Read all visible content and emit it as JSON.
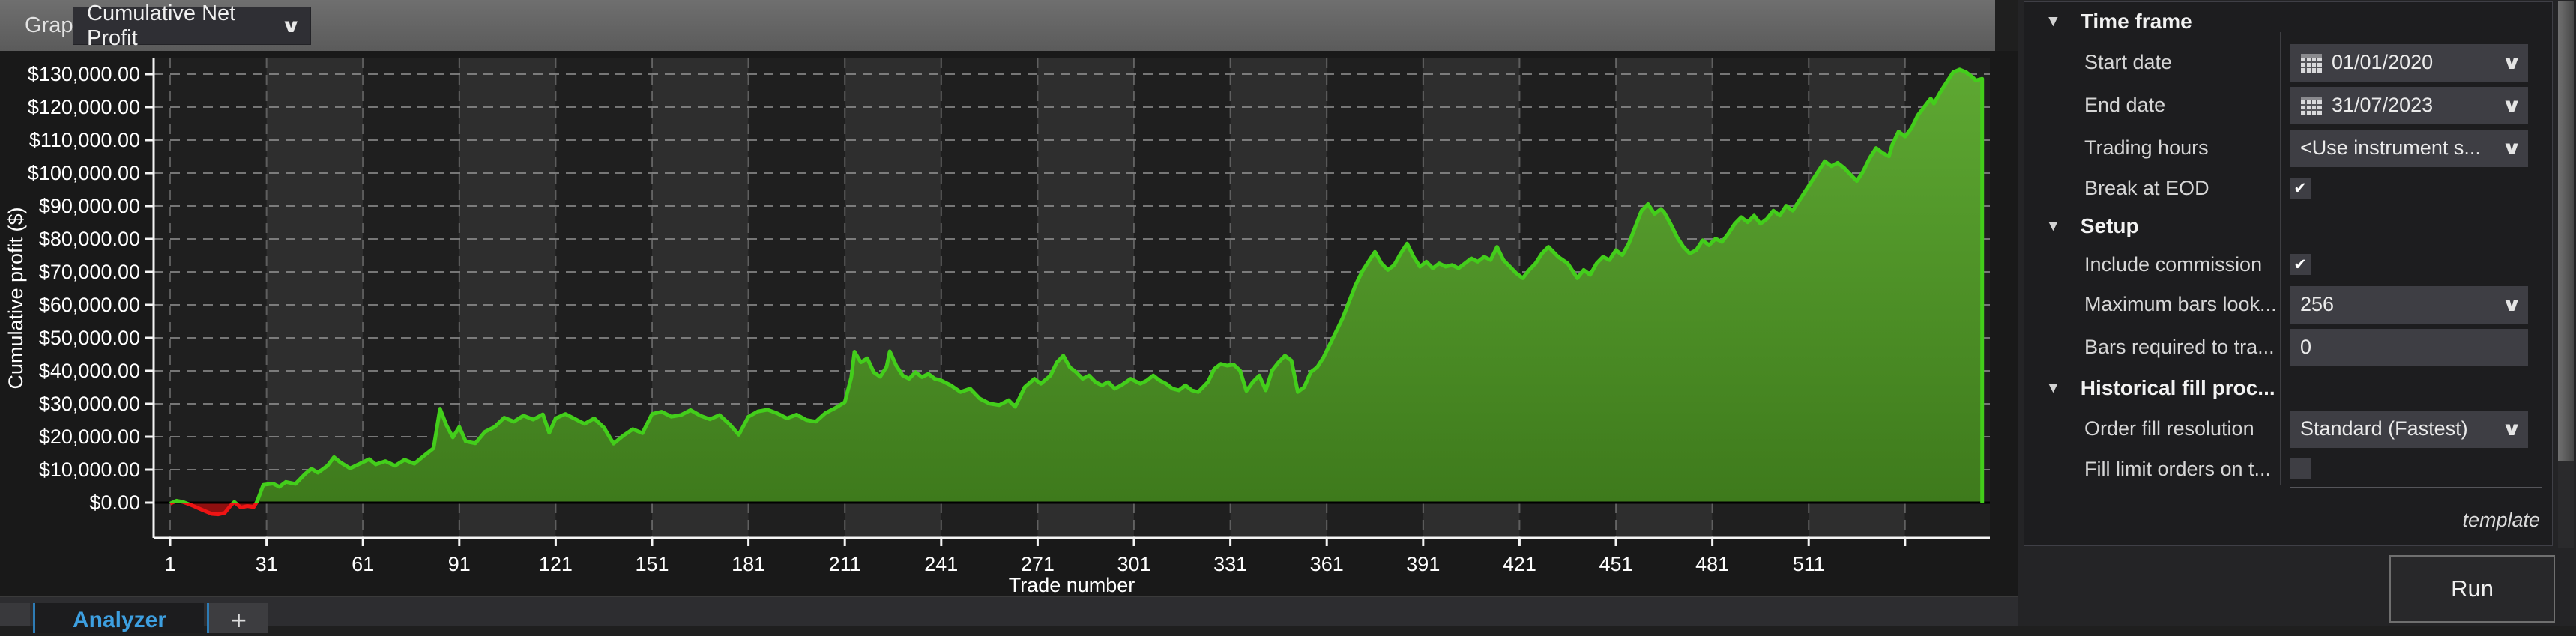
{
  "toolbar": {
    "graph_label": "Graph",
    "graph_value": "Cumulative Net Profit",
    "chevron": "∨"
  },
  "chart_data": {
    "type": "area",
    "title": "",
    "xlabel": "Trade number",
    "ylabel": "Cumulative profit ($)",
    "x_ticks": [
      1,
      31,
      61,
      91,
      121,
      151,
      181,
      211,
      241,
      271,
      301,
      331,
      361,
      391,
      421,
      451,
      481,
      511
    ],
    "extra_gridline_x": 541,
    "y_tick_values": [
      0,
      10000,
      20000,
      30000,
      40000,
      50000,
      60000,
      70000,
      80000,
      90000,
      100000,
      110000,
      120000,
      130000
    ],
    "y_tick_labels": [
      "$0.00",
      "$10,000.00",
      "$20,000.00",
      "$30,000.00",
      "$40,000.00",
      "$50,000.00",
      "$60,000.00",
      "$70,000.00",
      "$80,000.00",
      "$90,000.00",
      "$100,000.00",
      "$110,000.00",
      "$120,000.00",
      "$130,000.00"
    ],
    "xlim": [
      -4,
      567
    ],
    "ylim": [
      -10700,
      134800
    ],
    "grid": "dashed",
    "legend": "none",
    "plot_bands": "alternating 30-trade vertical bands starting dark at trade 1",
    "colors": {
      "band_dark": "#1f1f1f",
      "band_light": "#2e2e2e",
      "line_positive": "#43ce1b",
      "fill_positive_top": "#5ea832",
      "fill_positive_bottom": "#3e7a1c",
      "line_negative": "#ee1414",
      "fill_negative": "#8e0f0f",
      "axis": "#f5f5f5",
      "grid_line": "#bdbdbd",
      "zero_line": "#000000",
      "tick_text": "#ffffff"
    },
    "series": [
      {
        "name": "Cumulative Net Profit",
        "anchors": [
          [
            1,
            -300
          ],
          [
            3,
            600
          ],
          [
            5,
            200
          ],
          [
            8,
            -900
          ],
          [
            11,
            -2200
          ],
          [
            14,
            -3400
          ],
          [
            16,
            -3550
          ],
          [
            18,
            -3100
          ],
          [
            20,
            -700
          ],
          [
            21,
            200
          ],
          [
            23,
            -1500
          ],
          [
            25,
            -1050
          ],
          [
            27,
            -1350
          ],
          [
            28,
            200
          ],
          [
            30,
            5400
          ],
          [
            33,
            5800
          ],
          [
            35,
            4800
          ],
          [
            37,
            6300
          ],
          [
            40,
            5700
          ],
          [
            43,
            8700
          ],
          [
            45,
            10300
          ],
          [
            47,
            9100
          ],
          [
            50,
            11200
          ],
          [
            52,
            13800
          ],
          [
            54,
            12200
          ],
          [
            57,
            10400
          ],
          [
            60,
            11800
          ],
          [
            63,
            13200
          ],
          [
            65,
            11600
          ],
          [
            68,
            12600
          ],
          [
            71,
            11200
          ],
          [
            74,
            13000
          ],
          [
            77,
            11800
          ],
          [
            80,
            14200
          ],
          [
            83,
            16500
          ],
          [
            85,
            28500
          ],
          [
            87,
            23500
          ],
          [
            89,
            19800
          ],
          [
            91,
            23000
          ],
          [
            93,
            18600
          ],
          [
            96,
            18000
          ],
          [
            99,
            21500
          ],
          [
            102,
            23000
          ],
          [
            105,
            25800
          ],
          [
            108,
            24600
          ],
          [
            111,
            26400
          ],
          [
            114,
            25200
          ],
          [
            117,
            26800
          ],
          [
            119,
            21200
          ],
          [
            121,
            25600
          ],
          [
            124,
            26900
          ],
          [
            127,
            25400
          ],
          [
            130,
            23900
          ],
          [
            133,
            25600
          ],
          [
            136,
            22800
          ],
          [
            139,
            17900
          ],
          [
            142,
            20300
          ],
          [
            145,
            22300
          ],
          [
            148,
            21100
          ],
          [
            151,
            26900
          ],
          [
            154,
            27600
          ],
          [
            157,
            26100
          ],
          [
            160,
            26600
          ],
          [
            163,
            28100
          ],
          [
            166,
            26400
          ],
          [
            169,
            25300
          ],
          [
            172,
            26600
          ],
          [
            175,
            23900
          ],
          [
            178,
            20600
          ],
          [
            181,
            26100
          ],
          [
            184,
            27700
          ],
          [
            187,
            28200
          ],
          [
            190,
            27100
          ],
          [
            193,
            25600
          ],
          [
            196,
            26700
          ],
          [
            199,
            25100
          ],
          [
            202,
            24600
          ],
          [
            205,
            27200
          ],
          [
            208,
            28700
          ],
          [
            211,
            30500
          ],
          [
            213,
            38000
          ],
          [
            214,
            45800
          ],
          [
            216,
            42600
          ],
          [
            218,
            43800
          ],
          [
            220,
            39600
          ],
          [
            222,
            38200
          ],
          [
            224,
            41200
          ],
          [
            225,
            45900
          ],
          [
            227,
            41600
          ],
          [
            229,
            38600
          ],
          [
            231,
            37600
          ],
          [
            233,
            39600
          ],
          [
            235,
            38100
          ],
          [
            237,
            39100
          ],
          [
            239,
            37600
          ],
          [
            241,
            37100
          ],
          [
            244,
            35600
          ],
          [
            247,
            33600
          ],
          [
            250,
            34600
          ],
          [
            253,
            31600
          ],
          [
            256,
            30100
          ],
          [
            259,
            29600
          ],
          [
            262,
            31100
          ],
          [
            264,
            29100
          ],
          [
            267,
            35100
          ],
          [
            270,
            37600
          ],
          [
            272,
            36100
          ],
          [
            275,
            38600
          ],
          [
            277,
            42600
          ],
          [
            279,
            44600
          ],
          [
            281,
            41100
          ],
          [
            283,
            39600
          ],
          [
            285,
            37600
          ],
          [
            287,
            38600
          ],
          [
            289,
            36600
          ],
          [
            291,
            35600
          ],
          [
            293,
            36600
          ],
          [
            295,
            34600
          ],
          [
            297,
            35600
          ],
          [
            300,
            37600
          ],
          [
            303,
            36100
          ],
          [
            305,
            37100
          ],
          [
            307,
            38600
          ],
          [
            309,
            37100
          ],
          [
            311,
            36100
          ],
          [
            313,
            34600
          ],
          [
            315,
            34100
          ],
          [
            317,
            35600
          ],
          [
            319,
            34100
          ],
          [
            321,
            33600
          ],
          [
            324,
            36600
          ],
          [
            326,
            40600
          ],
          [
            328,
            42100
          ],
          [
            330,
            41600
          ],
          [
            332,
            41900
          ],
          [
            334,
            40100
          ],
          [
            336,
            33900
          ],
          [
            338,
            36600
          ],
          [
            340,
            38600
          ],
          [
            342,
            34100
          ],
          [
            344,
            40100
          ],
          [
            346,
            42600
          ],
          [
            348,
            44600
          ],
          [
            350,
            43100
          ],
          [
            352,
            33600
          ],
          [
            354,
            35100
          ],
          [
            356,
            39600
          ],
          [
            358,
            41100
          ],
          [
            360,
            44100
          ],
          [
            362,
            48100
          ],
          [
            364,
            52100
          ],
          [
            366,
            56100
          ],
          [
            368,
            61100
          ],
          [
            370,
            66100
          ],
          [
            372,
            70100
          ],
          [
            374,
            73100
          ],
          [
            376,
            76100
          ],
          [
            378,
            72600
          ],
          [
            380,
            70600
          ],
          [
            382,
            72100
          ],
          [
            384,
            75600
          ],
          [
            386,
            78600
          ],
          [
            388,
            74600
          ],
          [
            390,
            71600
          ],
          [
            392,
            73100
          ],
          [
            394,
            71100
          ],
          [
            396,
            72600
          ],
          [
            398,
            71600
          ],
          [
            400,
            72100
          ],
          [
            402,
            71100
          ],
          [
            404,
            72600
          ],
          [
            406,
            74100
          ],
          [
            408,
            73100
          ],
          [
            410,
            74600
          ],
          [
            412,
            73600
          ],
          [
            414,
            77600
          ],
          [
            416,
            73600
          ],
          [
            418,
            71600
          ],
          [
            420,
            69600
          ],
          [
            422,
            68100
          ],
          [
            424,
            70600
          ],
          [
            426,
            72600
          ],
          [
            428,
            75600
          ],
          [
            430,
            77600
          ],
          [
            433,
            74600
          ],
          [
            436,
            72600
          ],
          [
            439,
            68100
          ],
          [
            441,
            70600
          ],
          [
            443,
            69100
          ],
          [
            445,
            72600
          ],
          [
            447,
            74600
          ],
          [
            449,
            73600
          ],
          [
            451,
            76600
          ],
          [
            453,
            75100
          ],
          [
            455,
            78600
          ],
          [
            457,
            83600
          ],
          [
            459,
            88600
          ],
          [
            461,
            90600
          ],
          [
            463,
            87600
          ],
          [
            465,
            89100
          ],
          [
            466,
            88100
          ],
          [
            468,
            84600
          ],
          [
            470,
            80600
          ],
          [
            472,
            77600
          ],
          [
            474,
            75600
          ],
          [
            476,
            76600
          ],
          [
            478,
            79600
          ],
          [
            480,
            78100
          ],
          [
            482,
            80100
          ],
          [
            484,
            79100
          ],
          [
            486,
            81600
          ],
          [
            488,
            84600
          ],
          [
            490,
            86600
          ],
          [
            492,
            85100
          ],
          [
            494,
            87100
          ],
          [
            496,
            84600
          ],
          [
            498,
            86100
          ],
          [
            500,
            88600
          ],
          [
            502,
            87100
          ],
          [
            504,
            90100
          ],
          [
            506,
            88600
          ],
          [
            508,
            91600
          ],
          [
            510,
            94600
          ],
          [
            512,
            97600
          ],
          [
            514,
            100600
          ],
          [
            516,
            103600
          ],
          [
            518,
            102100
          ],
          [
            520,
            103100
          ],
          [
            522,
            101600
          ],
          [
            524,
            99600
          ],
          [
            526,
            97600
          ],
          [
            528,
            100600
          ],
          [
            530,
            104600
          ],
          [
            532,
            107600
          ],
          [
            534,
            106100
          ],
          [
            536,
            105100
          ],
          [
            537,
            108600
          ],
          [
            539,
            112600
          ],
          [
            541,
            111100
          ],
          [
            543,
            113600
          ],
          [
            545,
            117600
          ],
          [
            547,
            120100
          ],
          [
            549,
            122600
          ],
          [
            550,
            121100
          ],
          [
            552,
            124600
          ],
          [
            554,
            127600
          ],
          [
            556,
            130600
          ],
          [
            558,
            131400
          ],
          [
            560,
            130600
          ],
          [
            562,
            129100
          ],
          [
            563,
            128100
          ],
          [
            565,
            128600
          ]
        ]
      }
    ]
  },
  "panel": {
    "sections": [
      {
        "title": "Time frame",
        "rows": [
          {
            "label": "Start date",
            "type": "date",
            "value": "01/01/2020"
          },
          {
            "label": "End date",
            "type": "date",
            "value": "31/07/2023"
          },
          {
            "label": "Trading hours",
            "type": "select",
            "value": "<Use instrument s..."
          },
          {
            "label": "Break at EOD",
            "type": "checkbox",
            "checked": "✔"
          }
        ]
      },
      {
        "title": "Setup",
        "rows": [
          {
            "label": "Include commission",
            "type": "checkbox",
            "checked": "✔"
          },
          {
            "label": "Maximum bars look...",
            "type": "select",
            "value": "256"
          },
          {
            "label": "Bars required to tra...",
            "type": "input",
            "value": "0"
          }
        ]
      },
      {
        "title": "Historical fill proc...",
        "rows": [
          {
            "label": "Order fill resolution",
            "type": "select",
            "value": "Standard (Fastest)"
          },
          {
            "label": "Fill limit orders on t...",
            "type": "checkbox",
            "checked": ""
          }
        ]
      }
    ],
    "template_link": "template",
    "run_label": "Run",
    "chevron": "∨",
    "triangle": "▼"
  },
  "tabs": {
    "analyzer": "Analyzer",
    "add": "+"
  }
}
